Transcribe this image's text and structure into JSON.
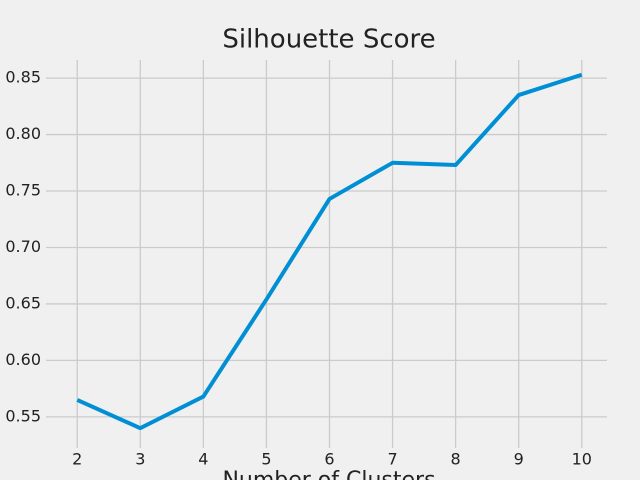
{
  "chart_data": {
    "type": "line",
    "title": "Silhouette Score",
    "x_label": "Number of Clusters",
    "x": [
      2,
      3,
      4,
      5,
      6,
      7,
      8,
      9,
      10
    ],
    "series": [
      {
        "name": "Silhouette Score",
        "color": "#008fd5",
        "values": [
          0.565,
          0.54,
          0.568,
          0.654,
          0.743,
          0.775,
          0.773,
          0.835,
          0.853
        ]
      }
    ],
    "xlim": [
      1.6,
      10.4
    ],
    "xticks": [
      2,
      3,
      4,
      5,
      6,
      7,
      8,
      9,
      10
    ],
    "ylim": [
      0.5233,
      0.8687
    ],
    "yticks": [
      0.55,
      {
        "value": 0.6,
        "label": "0.60"
      },
      0.65,
      {
        "value": 0.7,
        "label": "0.70"
      },
      0.75,
      {
        "value": 0.8,
        "label": "0.80"
      },
      0.85
    ],
    "grid": true
  }
}
